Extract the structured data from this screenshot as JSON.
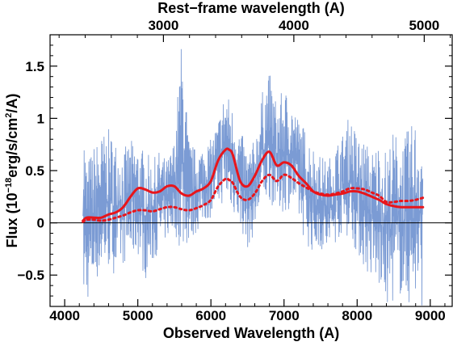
{
  "chart_data": {
    "type": "line",
    "title": "",
    "xlabel": "Observed Wavelength (A)",
    "x2label": "Rest−frame wavelength (A)",
    "ylabel_parts": {
      "pre": "Flux (10",
      "exp": "−18",
      "mid": "erg/s/cm",
      "exp2": "2",
      "post": "/A)"
    },
    "xlim": [
      3800,
      9300
    ],
    "ylim": [
      -0.8,
      1.8
    ],
    "x_ticks": [
      4000,
      5000,
      6000,
      7000,
      8000,
      9000
    ],
    "x_tick_labels": [
      "4000",
      "5000",
      "6000",
      "7000",
      "8000",
      "9000"
    ],
    "x2_ticks": [
      3000,
      4000,
      5000
    ],
    "x2_tick_labels": [
      "3000",
      "4000",
      "5000"
    ],
    "x2_factor": 1.7835,
    "y_ticks": [
      -0.5,
      0,
      0.5,
      1,
      1.5
    ],
    "y_tick_labels": [
      "−0.5",
      "0",
      "0.5",
      "1",
      "1.5"
    ],
    "zero_line": 0,
    "colors": {
      "spectrum": "#7b9bd4",
      "model": "#e8151b",
      "axis": "#000000"
    },
    "noise_spectrum": {
      "name": "",
      "x_range": [
        4250,
        8900
      ],
      "envelope": [
        [
          4250,
          -0.8,
          1.12
        ],
        [
          4300,
          -0.78,
          0.6
        ],
        [
          4400,
          -0.6,
          0.75
        ],
        [
          4500,
          -0.5,
          0.85
        ],
        [
          4600,
          -0.45,
          0.9
        ],
        [
          4700,
          -0.5,
          0.8
        ],
        [
          4800,
          -0.4,
          0.7
        ],
        [
          4900,
          -0.35,
          0.8
        ],
        [
          5000,
          -0.3,
          0.75
        ],
        [
          5100,
          -0.55,
          0.7
        ],
        [
          5200,
          -0.4,
          0.6
        ],
        [
          5300,
          -0.25,
          0.7
        ],
        [
          5400,
          -0.15,
          0.6
        ],
        [
          5500,
          -0.1,
          0.8
        ],
        [
          5600,
          -0.3,
          1.77
        ],
        [
          5700,
          -0.2,
          0.8
        ],
        [
          5800,
          -0.1,
          0.7
        ],
        [
          5900,
          0.0,
          0.75
        ],
        [
          6000,
          0.05,
          0.8
        ],
        [
          6100,
          0.15,
          1.0
        ],
        [
          6200,
          0.2,
          1.3
        ],
        [
          6300,
          0.1,
          1.1
        ],
        [
          6400,
          -0.05,
          0.9
        ],
        [
          6500,
          -0.25,
          0.7
        ],
        [
          6600,
          -0.1,
          0.8
        ],
        [
          6700,
          0.15,
          1.25
        ],
        [
          6800,
          0.2,
          1.45
        ],
        [
          6900,
          0.1,
          1.15
        ],
        [
          7000,
          0.1,
          1.3
        ],
        [
          7100,
          0.15,
          1.2
        ],
        [
          7200,
          0.0,
          1.0
        ],
        [
          7300,
          -0.2,
          0.9
        ],
        [
          7400,
          -0.3,
          0.75
        ],
        [
          7500,
          -0.25,
          0.65
        ],
        [
          7600,
          -0.35,
          0.6
        ],
        [
          7700,
          -0.2,
          0.75
        ],
        [
          7800,
          -0.1,
          0.85
        ],
        [
          7900,
          -0.15,
          1.05
        ],
        [
          8000,
          -0.3,
          0.85
        ],
        [
          8100,
          -0.45,
          0.8
        ],
        [
          8200,
          -0.55,
          0.7
        ],
        [
          8300,
          -0.65,
          0.8
        ],
        [
          8400,
          -0.8,
          0.7
        ],
        [
          8500,
          -0.75,
          0.9
        ],
        [
          8600,
          -0.7,
          0.8
        ],
        [
          8700,
          -0.8,
          0.9
        ],
        [
          8800,
          -0.75,
          1.0
        ],
        [
          8900,
          -0.8,
          0.95
        ]
      ]
    },
    "series": [
      {
        "style": "solid",
        "x": [
          4250,
          4300,
          4400,
          4500,
          4600,
          4700,
          4800,
          4900,
          5000,
          5100,
          5200,
          5300,
          5400,
          5500,
          5600,
          5700,
          5800,
          5900,
          6000,
          6100,
          6200,
          6250,
          6300,
          6400,
          6500,
          6600,
          6700,
          6800,
          6900,
          7000,
          7100,
          7200,
          7300,
          7400,
          7500,
          7600,
          7700,
          7800,
          7900,
          8000,
          8100,
          8200,
          8300,
          8400,
          8500,
          8600,
          8700,
          8800,
          8900
        ],
        "y": [
          0.02,
          0.05,
          0.05,
          0.05,
          0.08,
          0.1,
          0.15,
          0.25,
          0.33,
          0.32,
          0.29,
          0.3,
          0.35,
          0.35,
          0.28,
          0.26,
          0.3,
          0.33,
          0.4,
          0.6,
          0.7,
          0.7,
          0.65,
          0.4,
          0.35,
          0.45,
          0.6,
          0.68,
          0.55,
          0.58,
          0.55,
          0.45,
          0.38,
          0.3,
          0.27,
          0.26,
          0.27,
          0.28,
          0.3,
          0.3,
          0.28,
          0.25,
          0.22,
          0.18,
          0.16,
          0.15,
          0.15,
          0.15,
          0.15
        ]
      },
      {
        "style": "dotted",
        "x": [
          4250,
          4300,
          4400,
          4500,
          4600,
          4700,
          4800,
          4900,
          5000,
          5100,
          5200,
          5300,
          5400,
          5500,
          5600,
          5700,
          5800,
          5900,
          6000,
          6100,
          6200,
          6250,
          6300,
          6400,
          6500,
          6600,
          6700,
          6800,
          6900,
          7000,
          7100,
          7200,
          7300,
          7400,
          7500,
          7600,
          7700,
          7800,
          7900,
          8000,
          8100,
          8200,
          8300,
          8400,
          8500,
          8600,
          8700,
          8800,
          8900
        ],
        "y": [
          0.01,
          0.03,
          0.03,
          0.02,
          0.03,
          0.05,
          0.07,
          0.1,
          0.12,
          0.12,
          0.11,
          0.13,
          0.15,
          0.15,
          0.13,
          0.12,
          0.14,
          0.17,
          0.22,
          0.35,
          0.42,
          0.41,
          0.38,
          0.25,
          0.22,
          0.28,
          0.4,
          0.46,
          0.4,
          0.46,
          0.43,
          0.38,
          0.34,
          0.3,
          0.28,
          0.27,
          0.28,
          0.3,
          0.33,
          0.33,
          0.32,
          0.29,
          0.26,
          0.2,
          0.2,
          0.21,
          0.21,
          0.22,
          0.24
        ]
      }
    ]
  }
}
